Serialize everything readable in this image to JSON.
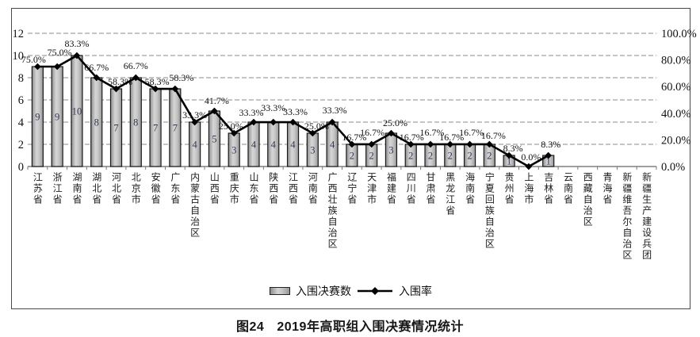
{
  "figure": {
    "caption_prefix": "图24",
    "caption_text": "2019年高职组入围决赛情况统计"
  },
  "legend": {
    "bar_label": "入围决赛数",
    "line_label": "入围率"
  },
  "chart_data": {
    "type": "bar",
    "combo": "bar+line",
    "title": "",
    "categories": [
      "江苏省",
      "浙江省",
      "湖南省",
      "湖北省",
      "河北省",
      "北京市",
      "安徽省",
      "广东省",
      "内蒙古自治区",
      "山西省",
      "重庆市",
      "山东省",
      "陕西省",
      "江西省",
      "河南省",
      "广西壮族自治区",
      "辽宁省",
      "天津市",
      "福建省",
      "四川省",
      "甘肃省",
      "黑龙江省",
      "海南省",
      "宁夏回族自治区",
      "贵州省",
      "上海市",
      "吉林省",
      "云南省",
      "西藏自治区",
      "青海省",
      "新疆维吾尔自治区",
      "新疆生产建设兵团"
    ],
    "series": [
      {
        "name": "入围决赛数",
        "type": "bar",
        "axis": "left",
        "values": [
          9,
          9,
          10,
          8,
          7,
          8,
          7,
          7,
          4,
          5,
          3,
          4,
          4,
          4,
          3,
          4,
          2,
          2,
          3,
          2,
          2,
          2,
          2,
          2,
          1,
          0,
          1,
          null,
          null,
          null,
          null,
          null
        ]
      },
      {
        "name": "入围率",
        "type": "line",
        "axis": "right",
        "values": [
          75.0,
          75.0,
          83.3,
          66.7,
          58.3,
          66.7,
          58.3,
          58.3,
          33.3,
          41.7,
          25.0,
          33.3,
          33.3,
          33.3,
          25.0,
          33.3,
          16.7,
          16.7,
          25.0,
          16.7,
          16.7,
          16.7,
          16.7,
          16.7,
          8.3,
          0.0,
          8.3,
          null,
          null,
          null,
          null,
          null
        ],
        "labels": [
          "75.0%",
          "75.0%",
          "83.3%",
          "66.7%",
          "58.3%",
          "66.7%",
          "58.3%",
          "58.3%",
          "33.3%",
          "41.7%",
          "25.0%",
          "33.3%",
          "33.3%",
          "33.3%",
          "25.0%",
          "33.3%",
          "16.7%",
          "16.7%",
          "25.0%",
          "16.7%",
          "16.7%",
          "16.7%",
          "16.7%",
          "16.7%",
          "8.3%",
          "0.0%",
          "8.3%",
          null,
          null,
          null,
          null,
          null
        ]
      }
    ],
    "left_axis": {
      "ticks": [
        0,
        2,
        4,
        6,
        8,
        10,
        12
      ],
      "min": 0,
      "max": 12
    },
    "right_axis": {
      "tick_labels": [
        "0.0%",
        "20.0%",
        "40.0%",
        "60.0%",
        "80.0%",
        "100.0%"
      ],
      "min": 0,
      "max": 100
    },
    "grid": true,
    "legend_position": "bottom",
    "colors": {
      "bar_fill_dark": "#8e8e8e",
      "bar_fill_light": "#d6d6d6",
      "bar_border": "#1a1a1a",
      "bar_value_text": "#323a55",
      "line": "#000000",
      "grid": "#8a8a8a",
      "axis_text": "#111111"
    },
    "label_offsets": {
      "dx": [
        -5,
        3,
        0,
        0,
        5,
        0,
        2,
        8,
        0,
        3,
        -4,
        -3,
        0,
        3,
        5,
        3,
        3,
        1,
        5,
        1,
        2,
        2,
        2,
        5,
        5,
        3,
        3
      ],
      "dy": [
        0,
        9,
        6,
        4,
        0,
        6,
        0,
        5,
        0,
        4,
        0,
        3,
        9,
        4,
        0,
        6,
        0,
        6,
        4,
        0,
        6,
        0,
        6,
        2,
        0,
        3,
        5
      ]
    }
  }
}
